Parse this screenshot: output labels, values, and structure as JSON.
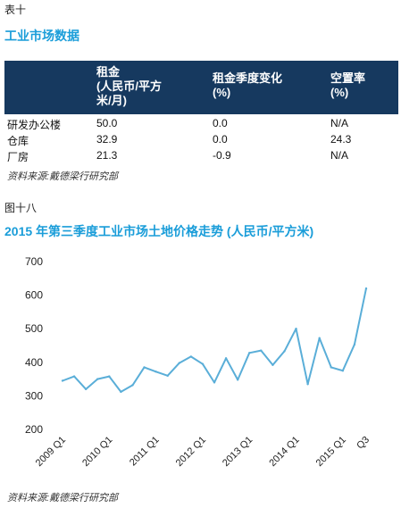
{
  "table_label": "表十",
  "table_title": "工业市场数据",
  "table": {
    "headers": [
      "",
      "租金\n(人民币/平方\n米/月)",
      "租金季度变化\n(%)",
      "空置率\n(%)"
    ],
    "rows": [
      [
        "研发办公楼",
        "50.0",
        "0.0",
        "N/A"
      ],
      [
        "仓库",
        "32.9",
        "0.0",
        "24.3"
      ],
      [
        "厂房",
        "21.3",
        "-0.9",
        "N/A"
      ]
    ]
  },
  "source1": "资料来源:戴德梁行研究部",
  "figure_label": "图十八",
  "source2": "资料来源:戴德梁行研究部",
  "chart_data": {
    "type": "line",
    "title": "2015 年第三季度工业市场土地价格走势 (人民币/平方米)",
    "xlabel": "",
    "ylabel": "",
    "ylim": [
      200,
      700
    ],
    "yticks": [
      200,
      300,
      400,
      500,
      600,
      700
    ],
    "x": [
      "2009 Q1",
      "2009 Q2",
      "2009 Q3",
      "2009 Q4",
      "2010 Q1",
      "2010 Q2",
      "2010 Q3",
      "2010 Q4",
      "2011 Q1",
      "2011 Q2",
      "2011 Q3",
      "2011 Q4",
      "2012 Q1",
      "2012 Q2",
      "2012 Q3",
      "2012 Q4",
      "2013 Q1",
      "2013 Q2",
      "2013 Q3",
      "2013 Q4",
      "2014 Q1",
      "2014 Q2",
      "2014 Q3",
      "2014 Q4",
      "2015 Q1",
      "2015 Q2",
      "2015 Q3"
    ],
    "tick_labels": [
      {
        "index": 0,
        "label": "2009 Q1"
      },
      {
        "index": 4,
        "label": "2010 Q1"
      },
      {
        "index": 8,
        "label": "2011 Q1"
      },
      {
        "index": 12,
        "label": "2012 Q1"
      },
      {
        "index": 16,
        "label": "2013 Q1"
      },
      {
        "index": 20,
        "label": "2014 Q1"
      },
      {
        "index": 24,
        "label": "2015 Q1"
      },
      {
        "index": 26,
        "label": "Q3"
      }
    ],
    "series": [
      {
        "values": [
          345,
          358,
          320,
          350,
          358,
          312,
          332,
          385,
          372,
          360,
          398,
          417,
          395,
          340,
          412,
          348,
          428,
          435,
          392,
          433,
          500,
          335,
          472,
          385,
          375,
          453,
          620
        ]
      }
    ],
    "line_color": "#5aaed8",
    "grid": false
  }
}
